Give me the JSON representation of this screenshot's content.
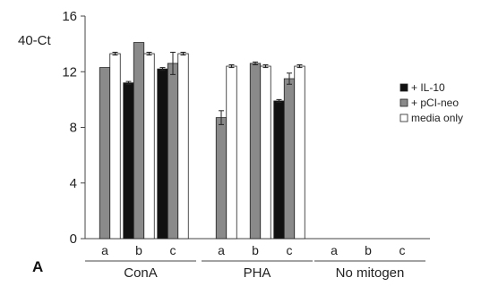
{
  "chart_data": {
    "type": "bar",
    "panel_label": "A",
    "ylabel": "40-Ct",
    "ylim": [
      0,
      16
    ],
    "yticks": [
      0,
      4,
      8,
      12,
      16
    ],
    "grid": false,
    "legend_position": "right",
    "groups": [
      {
        "name": "ConA",
        "subcategories": [
          "a",
          "b",
          "c"
        ]
      },
      {
        "name": "PHA",
        "subcategories": [
          "a",
          "b",
          "c"
        ]
      },
      {
        "name": "No mitogen",
        "subcategories": [
          "a",
          "b",
          "c"
        ]
      }
    ],
    "series": [
      {
        "name": "+ IL-10",
        "color": "#111111",
        "values": [
          0,
          11.2,
          12.2,
          0,
          0,
          9.9,
          0,
          0,
          0
        ],
        "errors": [
          0,
          0.1,
          0.1,
          0,
          0,
          0.1,
          0,
          0,
          0
        ]
      },
      {
        "name": "+ pCI-neo",
        "color": "#8a8a8a",
        "values": [
          12.3,
          14.1,
          12.6,
          8.7,
          12.6,
          11.5,
          0,
          0,
          0
        ],
        "errors": [
          0,
          0.05,
          0.8,
          0.5,
          0.1,
          0.4,
          0,
          0,
          0
        ]
      },
      {
        "name": "media only",
        "color": "#ffffff",
        "values": [
          13.3,
          13.3,
          13.3,
          12.4,
          12.4,
          12.4,
          0,
          0,
          0
        ],
        "errors": [
          0.1,
          0.1,
          0.1,
          0.1,
          0.1,
          0.1,
          0,
          0,
          0
        ]
      }
    ]
  }
}
